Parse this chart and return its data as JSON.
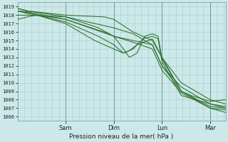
{
  "title": "Pression niveau de la mer( hPa )",
  "background_color": "#cce8e8",
  "grid_color": "#aacccc",
  "line_color": "#2d6e2d",
  "ylim": [
    1005.5,
    1019.5
  ],
  "yticks": [
    1006,
    1007,
    1008,
    1009,
    1010,
    1011,
    1012,
    1013,
    1014,
    1015,
    1016,
    1017,
    1018,
    1019
  ],
  "day_labels": [
    "Sam",
    "Dim",
    "Lun",
    "Mar"
  ],
  "day_positions": [
    0.25,
    0.5,
    0.75,
    1.0
  ],
  "xlim": [
    0.0,
    1.08
  ]
}
